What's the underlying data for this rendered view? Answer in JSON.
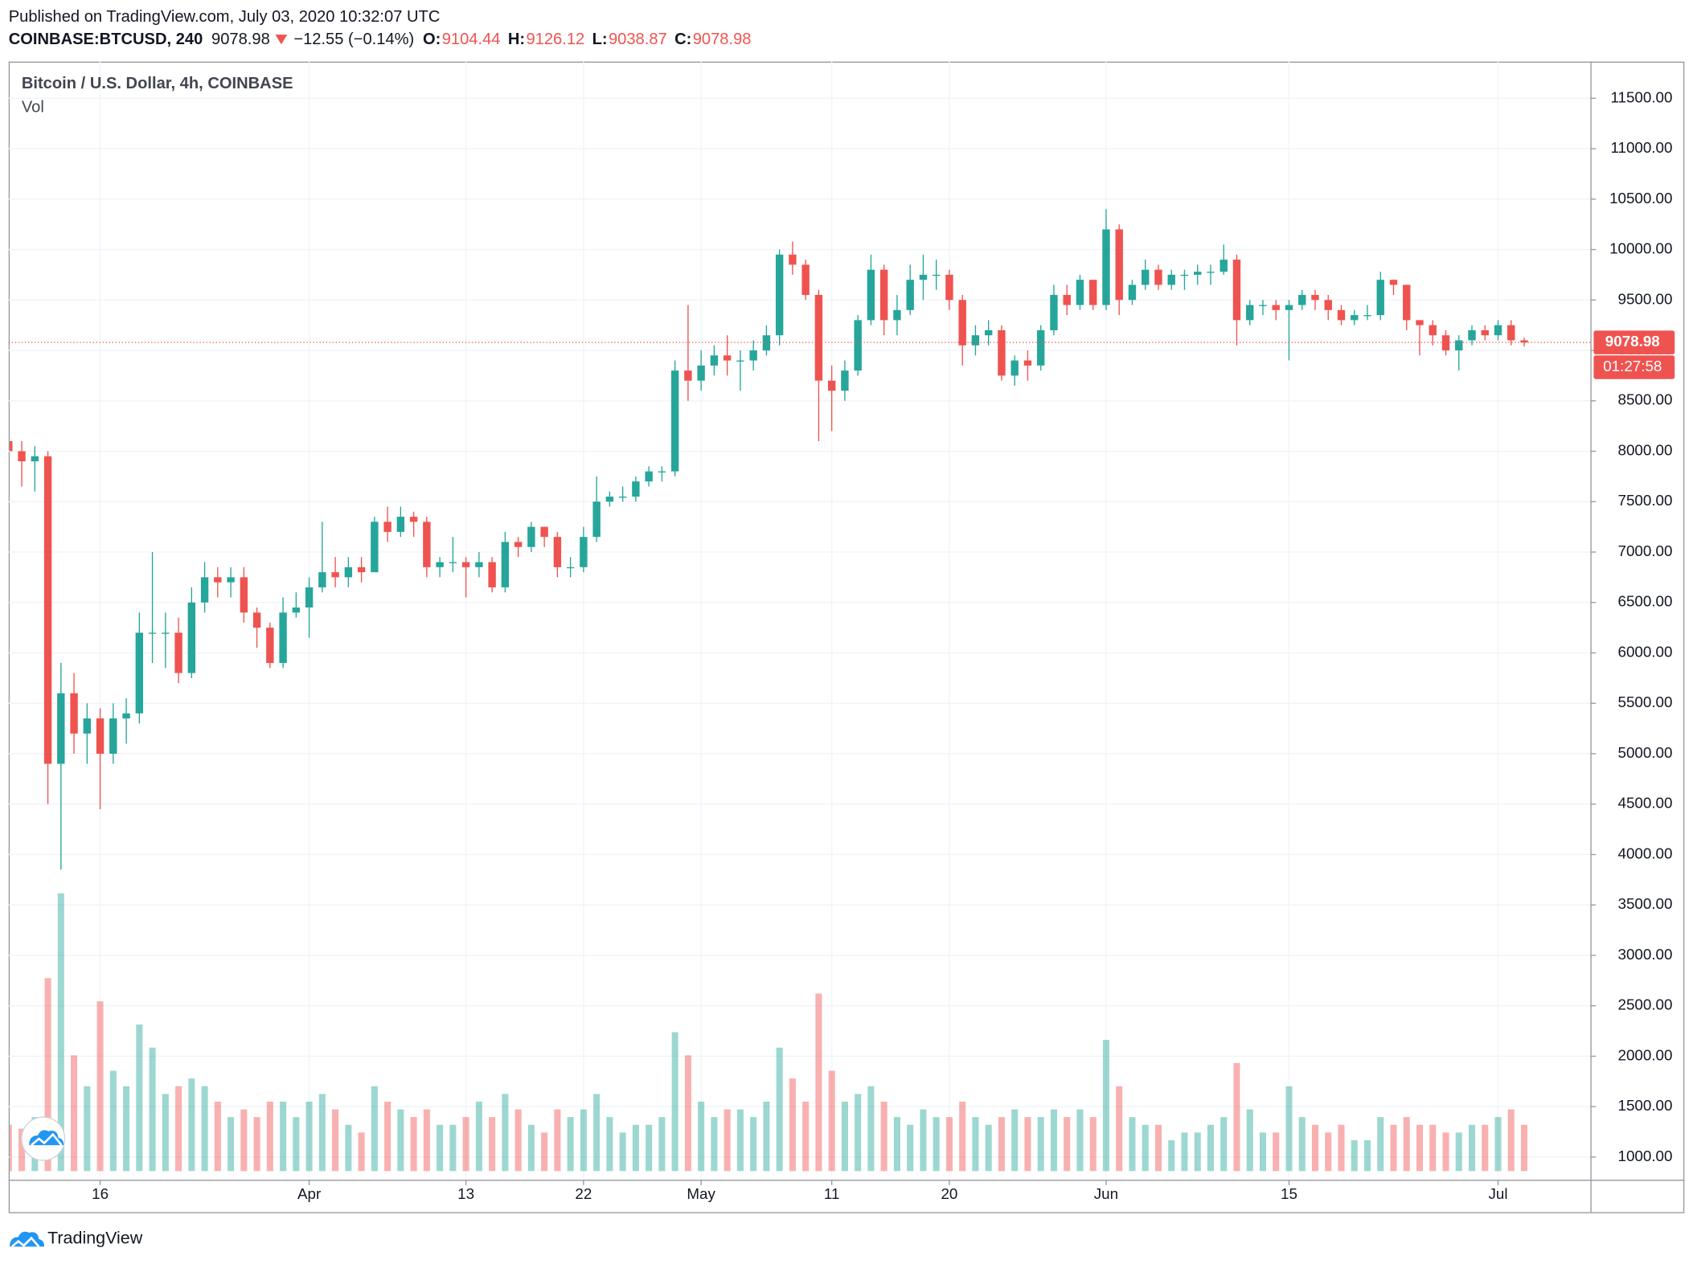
{
  "header": {
    "published": "Published on TradingView.com, July 03, 2020 10:32:07 UTC",
    "symbol": "COINBASE:BTCUSD, 240",
    "last": "9078.98",
    "change": "−12.55 (−0.14%)",
    "ohlc": [
      {
        "label": "O:",
        "value": "9104.44"
      },
      {
        "label": "H:",
        "value": "9126.12"
      },
      {
        "label": "L:",
        "value": "9038.87"
      },
      {
        "label": "C:",
        "value": "9078.98"
      }
    ]
  },
  "footer": {
    "brand": "TradingView"
  },
  "chart_data": {
    "type": "candlestick",
    "title": "Bitcoin / U.S. Dollar, 4h, COINBASE",
    "volume_name": "Vol",
    "up_color": "#26a69a",
    "down_color": "#ef5350",
    "categories": [
      "Mar 9",
      "Mar 10",
      "Mar 11",
      "Mar 12",
      "Mar 13",
      "Mar 14",
      "Mar 15",
      "Mar 16",
      "Mar 17",
      "Mar 18",
      "Mar 19",
      "Mar 20",
      "Mar 21",
      "Mar 22",
      "Mar 23",
      "Mar 24",
      "Mar 25",
      "Mar 26",
      "Mar 27",
      "Mar 28",
      "Mar 29",
      "Mar 30",
      "Mar 31",
      "Apr 1",
      "Apr 2",
      "Apr 3",
      "Apr 4",
      "Apr 5",
      "Apr 6",
      "Apr 7",
      "Apr 8",
      "Apr 9",
      "Apr 10",
      "Apr 11",
      "Apr 12",
      "Apr 13",
      "Apr 14",
      "Apr 15",
      "Apr 16",
      "Apr 17",
      "Apr 18",
      "Apr 19",
      "Apr 20",
      "Apr 21",
      "Apr 22",
      "Apr 23",
      "Apr 24",
      "Apr 25",
      "Apr 26",
      "Apr 27",
      "Apr 28",
      "Apr 29",
      "Apr 30",
      "May 1",
      "May 2",
      "May 3",
      "May 4",
      "May 5",
      "May 6",
      "May 7",
      "May 8",
      "May 9",
      "May 10",
      "May 11",
      "May 12",
      "May 13",
      "May 14",
      "May 15",
      "May 16",
      "May 17",
      "May 18",
      "May 19",
      "May 20",
      "May 21",
      "May 22",
      "May 23",
      "May 24",
      "May 25",
      "May 26",
      "May 27",
      "May 28",
      "May 29",
      "May 30",
      "May 31",
      "Jun 1",
      "Jun 2",
      "Jun 3",
      "Jun 4",
      "Jun 5",
      "Jun 6",
      "Jun 7",
      "Jun 8",
      "Jun 9",
      "Jun 10",
      "Jun 11",
      "Jun 12",
      "Jun 13",
      "Jun 14",
      "Jun 15",
      "Jun 16",
      "Jun 17",
      "Jun 18",
      "Jun 19",
      "Jun 20",
      "Jun 21",
      "Jun 22",
      "Jun 23",
      "Jun 24",
      "Jun 25",
      "Jun 26",
      "Jun 27",
      "Jun 28",
      "Jun 29",
      "Jun 30",
      "Jul 1",
      "Jul 2",
      "Jul 3"
    ],
    "open": [
      8100,
      8000,
      7900,
      7950,
      4900,
      5600,
      5200,
      5350,
      5000,
      5350,
      5400,
      6200,
      6200,
      6200,
      5800,
      6500,
      6750,
      6700,
      6750,
      6400,
      6250,
      5900,
      6400,
      6450,
      6650,
      6800,
      6750,
      6850,
      6800,
      7300,
      7200,
      7350,
      7300,
      6850,
      6900,
      6900,
      6850,
      6900,
      6650,
      7100,
      7050,
      7250,
      7150,
      6850,
      6850,
      7150,
      7500,
      7550,
      7550,
      7700,
      7800,
      7800,
      8800,
      8700,
      8850,
      8950,
      8900,
      8900,
      9000,
      9150,
      9950,
      9850,
      9550,
      8700,
      8600,
      8800,
      9300,
      9800,
      9300,
      9400,
      9700,
      9750,
      9750,
      9500,
      9050,
      9150,
      9200,
      8750,
      8900,
      8850,
      9200,
      9550,
      9450,
      9700,
      9450,
      10200,
      9500,
      9650,
      9800,
      9650,
      9750,
      9750,
      9780,
      9780,
      9900,
      9300,
      9450,
      9450,
      9400,
      9450,
      9550,
      9500,
      9400,
      9300,
      9350,
      9350,
      9700,
      9650,
      9300,
      9250,
      9150,
      9000,
      9100,
      9200,
      9150,
      9250,
      9100
    ],
    "high": [
      8150,
      8100,
      8050,
      8000,
      5900,
      5800,
      5500,
      5450,
      5500,
      5550,
      6400,
      7000,
      6400,
      6350,
      6650,
      6900,
      6850,
      6850,
      6850,
      6450,
      6300,
      6550,
      6600,
      6750,
      7300,
      6950,
      6950,
      6950,
      7350,
      7450,
      7450,
      7400,
      7350,
      6950,
      7150,
      6950,
      7000,
      6950,
      7200,
      7150,
      7300,
      7250,
      7200,
      6950,
      7250,
      7750,
      7600,
      7650,
      7750,
      7850,
      7850,
      8900,
      9450,
      9000,
      9050,
      9150,
      9000,
      9100,
      9250,
      10000,
      10080,
      9900,
      9600,
      8850,
      8900,
      9350,
      9950,
      9850,
      9550,
      9850,
      9950,
      9900,
      9800,
      9550,
      9250,
      9300,
      9250,
      8950,
      9000,
      9250,
      9650,
      9650,
      9750,
      9700,
      10400,
      10250,
      9700,
      9900,
      9850,
      9800,
      9800,
      9850,
      9850,
      10050,
      9950,
      9500,
      9500,
      9500,
      9500,
      9600,
      9600,
      9550,
      9450,
      9400,
      9450,
      9780,
      9700,
      9650,
      9300,
      9300,
      9200,
      9150,
      9250,
      9250,
      9300,
      9300,
      9126.12
    ],
    "low": [
      7700,
      7650,
      7600,
      4500,
      3850,
      5000,
      4900,
      4450,
      4900,
      5100,
      5300,
      5900,
      5850,
      5700,
      5750,
      6400,
      6550,
      6550,
      6300,
      6050,
      5850,
      5850,
      6350,
      6150,
      6600,
      6650,
      6650,
      6700,
      6800,
      7100,
      7150,
      7150,
      6750,
      6750,
      6800,
      6550,
      6750,
      6600,
      6600,
      6950,
      7000,
      7050,
      6750,
      6750,
      6800,
      7100,
      7450,
      7500,
      7500,
      7650,
      7700,
      7750,
      8500,
      8600,
      8750,
      8750,
      8600,
      8800,
      8950,
      9050,
      9750,
      9500,
      8100,
      8200,
      8500,
      8750,
      9250,
      9150,
      9150,
      9350,
      9500,
      9600,
      9400,
      8850,
      8950,
      9050,
      8700,
      8650,
      8700,
      8800,
      9150,
      9350,
      9400,
      9400,
      9400,
      9350,
      9450,
      9600,
      9600,
      9600,
      9600,
      9650,
      9650,
      9750,
      9050,
      9250,
      9350,
      9300,
      8900,
      9400,
      9400,
      9300,
      9250,
      9250,
      9300,
      9300,
      9550,
      9200,
      8950,
      9050,
      8950,
      8800,
      9050,
      9100,
      9100,
      9050,
      9038.87
    ],
    "close": [
      8000,
      7900,
      7950,
      4900,
      5600,
      5200,
      5350,
      5000,
      5350,
      5400,
      6200,
      6200,
      6200,
      5800,
      6500,
      6750,
      6700,
      6750,
      6400,
      6250,
      5900,
      6400,
      6450,
      6650,
      6800,
      6750,
      6850,
      6800,
      7300,
      7200,
      7350,
      7300,
      6850,
      6900,
      6900,
      6850,
      6900,
      6650,
      7100,
      7050,
      7250,
      7150,
      6850,
      6850,
      7150,
      7500,
      7550,
      7550,
      7700,
      7800,
      7800,
      8800,
      8700,
      8850,
      8950,
      8900,
      8900,
      9000,
      9150,
      9950,
      9850,
      9550,
      8700,
      8600,
      8800,
      9300,
      9800,
      9300,
      9400,
      9700,
      9750,
      9750,
      9500,
      9050,
      9150,
      9200,
      8750,
      8900,
      8850,
      9200,
      9550,
      9450,
      9700,
      9450,
      10200,
      9500,
      9650,
      9800,
      9650,
      9750,
      9750,
      9780,
      9780,
      9900,
      9300,
      9450,
      9450,
      9400,
      9450,
      9550,
      9500,
      9400,
      9300,
      9350,
      9350,
      9700,
      9650,
      9300,
      9250,
      9150,
      9000,
      9100,
      9200,
      9150,
      9250,
      9100,
      9078.98
    ],
    "volume": [
      600,
      550,
      700,
      2500,
      3600,
      1500,
      1100,
      2200,
      1300,
      1100,
      1900,
      1600,
      1000,
      1100,
      1200,
      1100,
      900,
      700,
      800,
      700,
      900,
      900,
      700,
      900,
      1000,
      800,
      600,
      500,
      1100,
      900,
      800,
      700,
      800,
      600,
      600,
      700,
      900,
      700,
      1000,
      800,
      600,
      500,
      800,
      700,
      800,
      1000,
      700,
      500,
      600,
      600,
      700,
      1800,
      1500,
      900,
      700,
      800,
      800,
      700,
      900,
      1600,
      1200,
      900,
      2300,
      1300,
      900,
      1000,
      1100,
      900,
      700,
      600,
      800,
      700,
      700,
      900,
      700,
      600,
      700,
      800,
      700,
      700,
      800,
      700,
      800,
      700,
      1700,
      1100,
      700,
      600,
      600,
      400,
      500,
      500,
      600,
      700,
      1400,
      800,
      500,
      500,
      1100,
      700,
      600,
      500,
      600,
      400,
      400,
      700,
      600,
      700,
      600,
      600,
      500,
      500,
      600,
      600,
      700,
      800,
      600
    ],
    "volume_ylim": [
      0,
      4000
    ],
    "ylim": [
      775,
      11864
    ],
    "yticks": [
      {
        "value": 1000,
        "label": "1000.00"
      },
      {
        "value": 1500,
        "label": "1500.00"
      },
      {
        "value": 2000,
        "label": "2000.00"
      },
      {
        "value": 2500,
        "label": "2500.00"
      },
      {
        "value": 3000,
        "label": "3000.00"
      },
      {
        "value": 3500,
        "label": "3500.00"
      },
      {
        "value": 4000,
        "label": "4000.00"
      },
      {
        "value": 4500,
        "label": "4500.00"
      },
      {
        "value": 5000,
        "label": "5000.00"
      },
      {
        "value": 5500,
        "label": "5500.00"
      },
      {
        "value": 6000,
        "label": "6000.00"
      },
      {
        "value": 6500,
        "label": "6500.00"
      },
      {
        "value": 7000,
        "label": "7000.00"
      },
      {
        "value": 7500,
        "label": "7500.00"
      },
      {
        "value": 8000,
        "label": "8000.00"
      },
      {
        "value": 8500,
        "label": "8500.00"
      },
      {
        "value": 9000,
        "label": "9000.00"
      },
      {
        "value": 9500,
        "label": "9500.00"
      },
      {
        "value": 10000,
        "label": "10000.00"
      },
      {
        "value": 10500,
        "label": "10500.00"
      },
      {
        "value": 11000,
        "label": "11000.00"
      },
      {
        "value": 11500,
        "label": "11500.00"
      }
    ],
    "xticks": [
      {
        "value": "Mar 16",
        "label": "16"
      },
      {
        "value": "Apr 1",
        "label": "Apr"
      },
      {
        "value": "Apr 13",
        "label": "13"
      },
      {
        "value": "Apr 22",
        "label": "22"
      },
      {
        "value": "May 1",
        "label": "May"
      },
      {
        "value": "May 11",
        "label": "11"
      },
      {
        "value": "May 20",
        "label": "20"
      },
      {
        "value": "Jun 1",
        "label": "Jun"
      },
      {
        "value": "Jun 15",
        "label": "15"
      },
      {
        "value": "Jul 1",
        "label": "Jul"
      }
    ],
    "grid": true,
    "last_price": {
      "value": 9078.98,
      "label": "9078.98"
    },
    "countdown": "01:27:58"
  }
}
